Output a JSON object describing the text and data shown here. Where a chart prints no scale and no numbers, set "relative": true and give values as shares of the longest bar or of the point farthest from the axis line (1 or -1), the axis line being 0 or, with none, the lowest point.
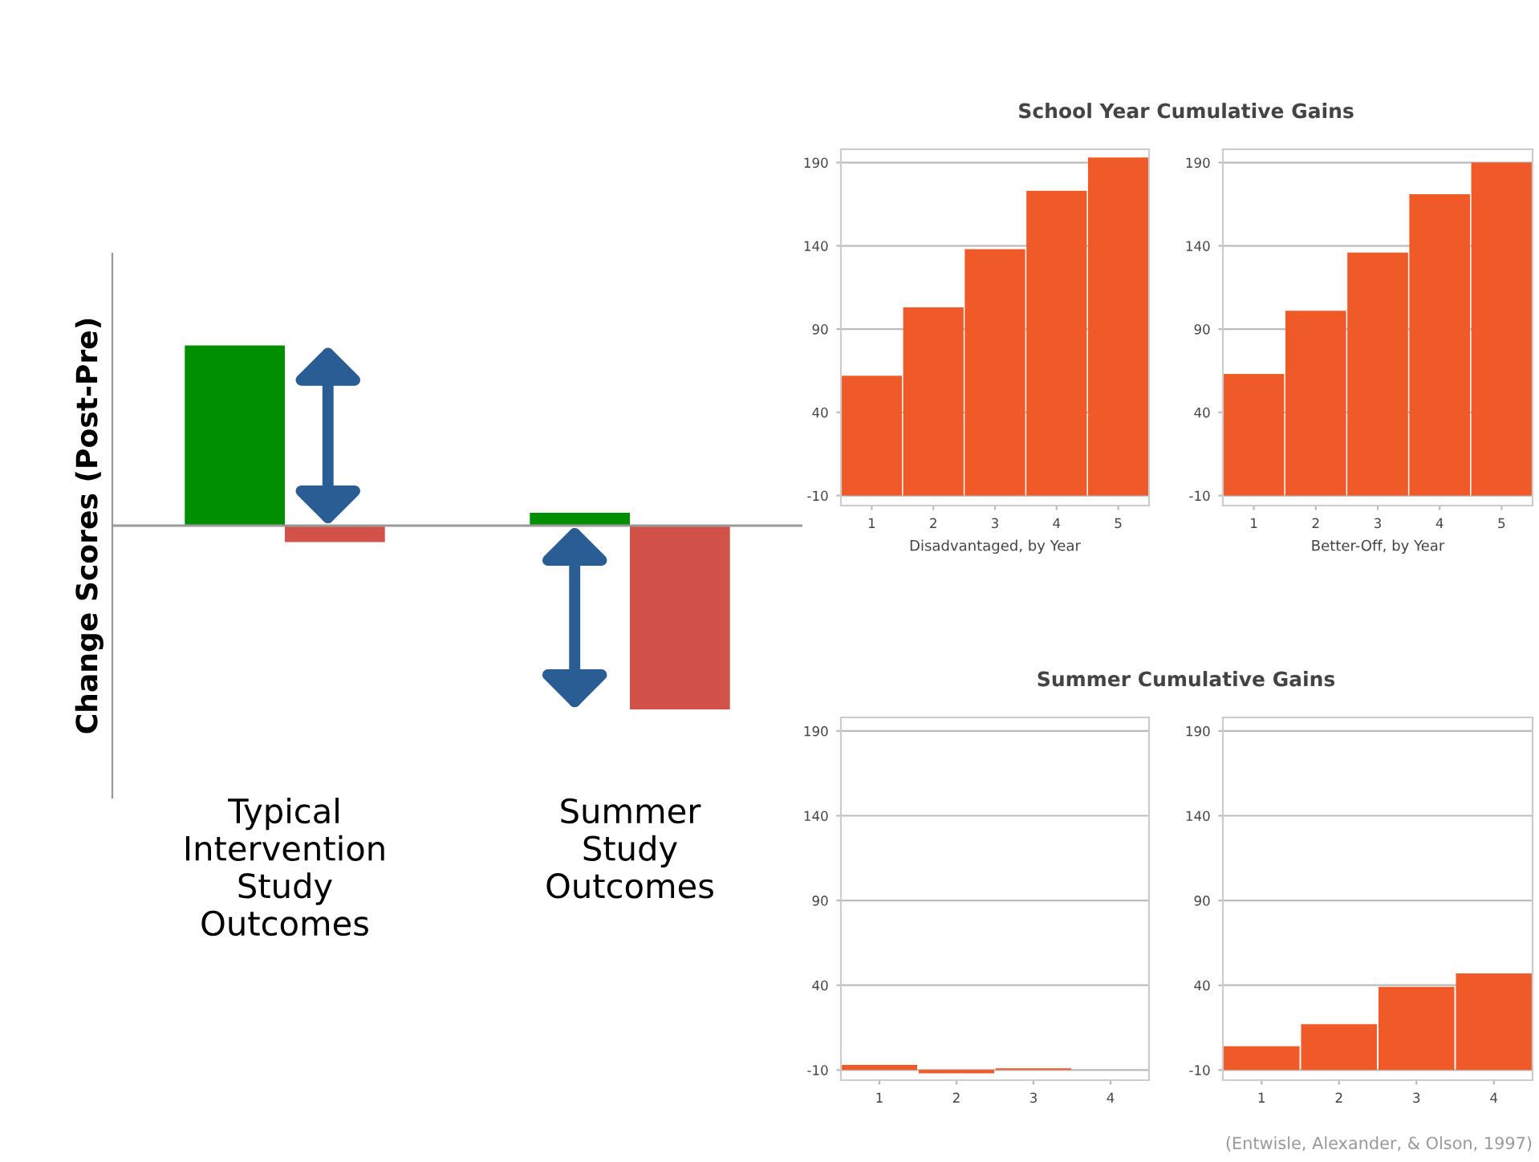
{
  "chart_data": [
    {
      "type": "bar",
      "relative": true,
      "ylabel": "Change Scores (Post-Pre)",
      "categories": [
        "Typical Intervention Study Outcomes",
        "Summer Study Outcomes"
      ],
      "series": [
        {
          "color": "#008f00",
          "values": [
            0.98,
            0.07
          ]
        },
        {
          "color": "#d2524a",
          "values": [
            -0.09,
            -1
          ]
        }
      ],
      "grid": false,
      "legend": false
    },
    {
      "type": "bar",
      "title": "School Year Cumulative Gains",
      "xlabel": "Disadvantaged, by Year",
      "categories": [
        "1",
        "2",
        "3",
        "4",
        "5"
      ],
      "base": [
        -10,
        -10,
        -10,
        -10,
        -10
      ],
      "values": [
        72,
        113,
        148,
        183,
        203
      ],
      "color": "#f05a28",
      "ylim": [
        -16,
        198
      ],
      "yticks": [
        -10,
        40,
        90,
        140,
        190
      ],
      "grid": "y"
    },
    {
      "type": "bar",
      "xlabel": "Better-Off, by Year",
      "categories": [
        "1",
        "2",
        "3",
        "4",
        "5"
      ],
      "base": [
        -10,
        -10,
        -10,
        -10,
        -10
      ],
      "values": [
        73,
        111,
        146,
        181,
        200
      ],
      "color": "#f05a28",
      "ylim": [
        -16,
        198
      ],
      "yticks": [
        -10,
        40,
        90,
        140,
        190
      ],
      "grid": "y"
    },
    {
      "type": "bar",
      "title": "Summer Cumulative Gains",
      "categories": [
        "1",
        "2",
        "3",
        "4"
      ],
      "base": [
        -10,
        -10,
        -10,
        null
      ],
      "values": [
        3,
        -2,
        1,
        null
      ],
      "color": "#f05a28",
      "ylim": [
        -16,
        198
      ],
      "yticks": [
        -10,
        40,
        90,
        140,
        190
      ],
      "grid": "y"
    },
    {
      "type": "bar",
      "categories": [
        "1",
        "2",
        "3",
        "4"
      ],
      "base": [
        -10,
        -10,
        -10,
        -10
      ],
      "values": [
        14,
        27,
        49,
        57
      ],
      "color": "#f05a28",
      "ylim": [
        -16,
        198
      ],
      "yticks": [
        -10,
        40,
        90,
        140,
        190
      ],
      "grid": "y",
      "annotations": [
        "(Entwisle, Alexander, & Olson, 1997)"
      ]
    }
  ]
}
